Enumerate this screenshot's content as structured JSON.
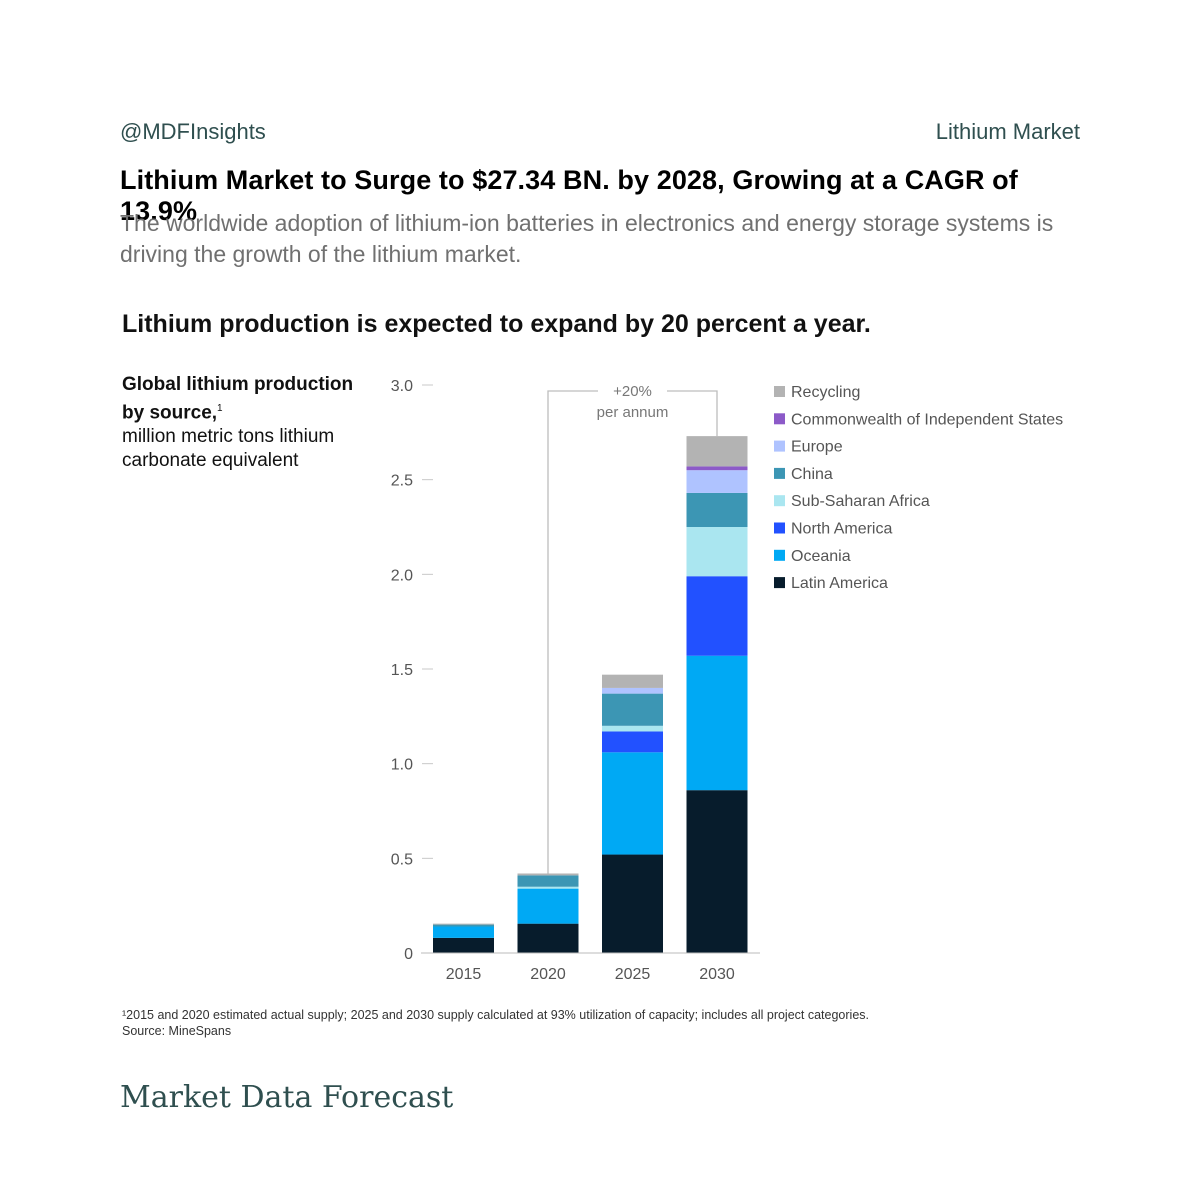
{
  "header": {
    "handle": "@MDFInsights",
    "topic": "Lithium Market"
  },
  "headline": "Lithium Market to Surge to $27.34 BN. by 2028, Growing at a CAGR of 13.9%",
  "subtitle": "The worldwide adoption of lithium-ion batteries in electronics and energy storage systems is driving the growth of the lithium market.",
  "chart_title": "Lithium production is expected to expand by 20 percent a year.",
  "units": {
    "bold_line": "Global lithium production by source,",
    "footnote_mark": "1",
    "rest": "million metric tons lithium carbonate equivalent"
  },
  "annotation": {
    "line1": "+20%",
    "line2": "per annum"
  },
  "footnote": {
    "text": "¹2015 and 2020 estimated actual supply; 2025 and 2030 supply calculated at 93% utilization of capacity; includes all project categories.",
    "source": "Source: MineSpans"
  },
  "brand": "Market Data Forecast",
  "chart_data": {
    "type": "bar",
    "stacked": true,
    "categories": [
      "2015",
      "2020",
      "2025",
      "2030"
    ],
    "ylim": [
      0,
      3.0
    ],
    "yticks": [
      "0",
      "0.5",
      "1.0",
      "1.5",
      "2.0",
      "2.5",
      "3.0"
    ],
    "grid": false,
    "legend_position": "right",
    "series": [
      {
        "name": "Latin America",
        "color": "#071c2c",
        "values": [
          0.08,
          0.155,
          0.52,
          0.86
        ]
      },
      {
        "name": "Oceania",
        "color": "#00a9f4",
        "values": [
          0.06,
          0.185,
          0.54,
          0.71
        ]
      },
      {
        "name": "North America",
        "color": "#2251ff",
        "values": [
          0.0,
          0.0,
          0.11,
          0.42
        ]
      },
      {
        "name": "Sub-Saharan Africa",
        "color": "#aae6f0",
        "values": [
          0.0,
          0.01,
          0.03,
          0.26
        ]
      },
      {
        "name": "China",
        "color": "#3c96b4",
        "values": [
          0.01,
          0.06,
          0.17,
          0.18
        ]
      },
      {
        "name": "Europe",
        "color": "#afc3ff",
        "values": [
          0.0,
          0.0,
          0.03,
          0.12
        ]
      },
      {
        "name": "Commonwealth of Independent States",
        "color": "#8c5ac8",
        "values": [
          0.0,
          0.0,
          0.0,
          0.02
        ]
      },
      {
        "name": "Recycling",
        "color": "#b3b3b3",
        "values": [
          0.005,
          0.01,
          0.07,
          0.16
        ]
      }
    ]
  }
}
